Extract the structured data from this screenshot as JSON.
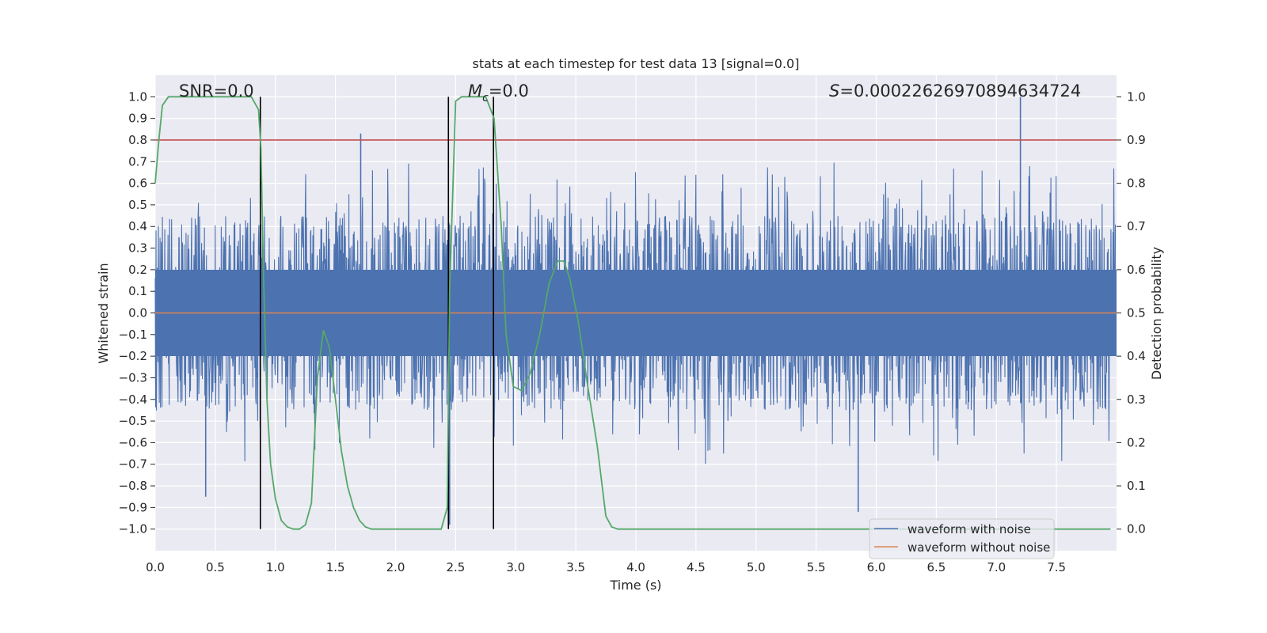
{
  "chart_data": {
    "type": "line",
    "title": "stats at each timestep for test data 13 [signal=0.0]",
    "xlabel": "Time (s)",
    "ylabel": "Whitened strain",
    "y2label": "Detection probability",
    "xlim": [
      0.0,
      8.0
    ],
    "ylim": [
      -1.1,
      1.1
    ],
    "y2lim": [
      -0.05,
      1.05
    ],
    "x_ticks": [
      "0.0",
      "0.5",
      "1.0",
      "1.5",
      "2.0",
      "2.5",
      "3.0",
      "3.5",
      "4.0",
      "4.5",
      "5.0",
      "5.5",
      "6.0",
      "6.5",
      "7.0",
      "7.5"
    ],
    "y_ticks": [
      "1.0",
      "0.9",
      "0.8",
      "0.7",
      "0.6",
      "0.5",
      "0.4",
      "0.3",
      "0.2",
      "0.1",
      "0.0",
      "−0.1",
      "−0.2",
      "−0.3",
      "−0.4",
      "−0.5",
      "−0.6",
      "−0.7",
      "−0.8",
      "−0.9",
      "−1.0"
    ],
    "y2_ticks": [
      "1.0",
      "0.9",
      "0.8",
      "0.7",
      "0.6",
      "0.5",
      "0.4",
      "0.3",
      "0.2",
      "0.1",
      "0.0"
    ],
    "annotations": {
      "snr": "SNR=0.0",
      "mc_symbol": "M",
      "mc_sub": "c",
      "mc_value": "=0.0",
      "s_symbol": "S",
      "s_value": "=0.00022626970894634724"
    },
    "threshold": {
      "value": 0.9,
      "axis": "right",
      "color": "#c44e52"
    },
    "vertical_lines": [
      0.875,
      2.44,
      2.815
    ],
    "series": [
      {
        "name": "waveform with noise",
        "color": "#4c72b0",
        "axis": "left",
        "kind": "noise",
        "typical_amplitude": 0.45,
        "peak_values": [
          1.0,
          -0.92
        ]
      },
      {
        "name": "waveform without noise",
        "color": "#dd8452",
        "axis": "left",
        "kind": "constant",
        "value": 0.0
      },
      {
        "name": "detection probability",
        "color": "#55a868",
        "axis": "right",
        "x": [
          0.0,
          0.03,
          0.06,
          0.11,
          0.2,
          0.4,
          0.6,
          0.8,
          0.86,
          0.88,
          0.9,
          0.93,
          0.96,
          1.0,
          1.05,
          1.1,
          1.15,
          1.2,
          1.25,
          1.3,
          1.35,
          1.4,
          1.45,
          1.5,
          1.55,
          1.6,
          1.65,
          1.7,
          1.75,
          1.8,
          1.85,
          2.0,
          2.2,
          2.38,
          2.43,
          2.45,
          2.5,
          2.55,
          2.6,
          2.75,
          2.82,
          2.88,
          2.92,
          2.98,
          3.05,
          3.12,
          3.2,
          3.28,
          3.35,
          3.4,
          3.45,
          3.52,
          3.6,
          3.68,
          3.75,
          3.8,
          3.85,
          4.0,
          5.0,
          6.0,
          7.0,
          7.95
        ],
        "y": [
          0.8,
          0.9,
          0.98,
          1.0,
          1.0,
          1.0,
          1.0,
          1.0,
          0.97,
          0.88,
          0.6,
          0.3,
          0.15,
          0.07,
          0.02,
          0.005,
          0.0,
          0.0,
          0.01,
          0.06,
          0.35,
          0.46,
          0.42,
          0.3,
          0.18,
          0.1,
          0.05,
          0.02,
          0.005,
          0.0,
          0.0,
          0.0,
          0.0,
          0.0,
          0.05,
          0.55,
          0.99,
          1.0,
          1.0,
          1.0,
          0.95,
          0.7,
          0.45,
          0.33,
          0.32,
          0.36,
          0.45,
          0.57,
          0.62,
          0.62,
          0.58,
          0.48,
          0.33,
          0.19,
          0.03,
          0.005,
          0.0,
          0.0,
          0.0,
          0.0,
          0.0,
          0.0
        ]
      }
    ],
    "legend": {
      "position": "lower-right",
      "entries": [
        "waveform with noise",
        "waveform without noise"
      ]
    }
  }
}
